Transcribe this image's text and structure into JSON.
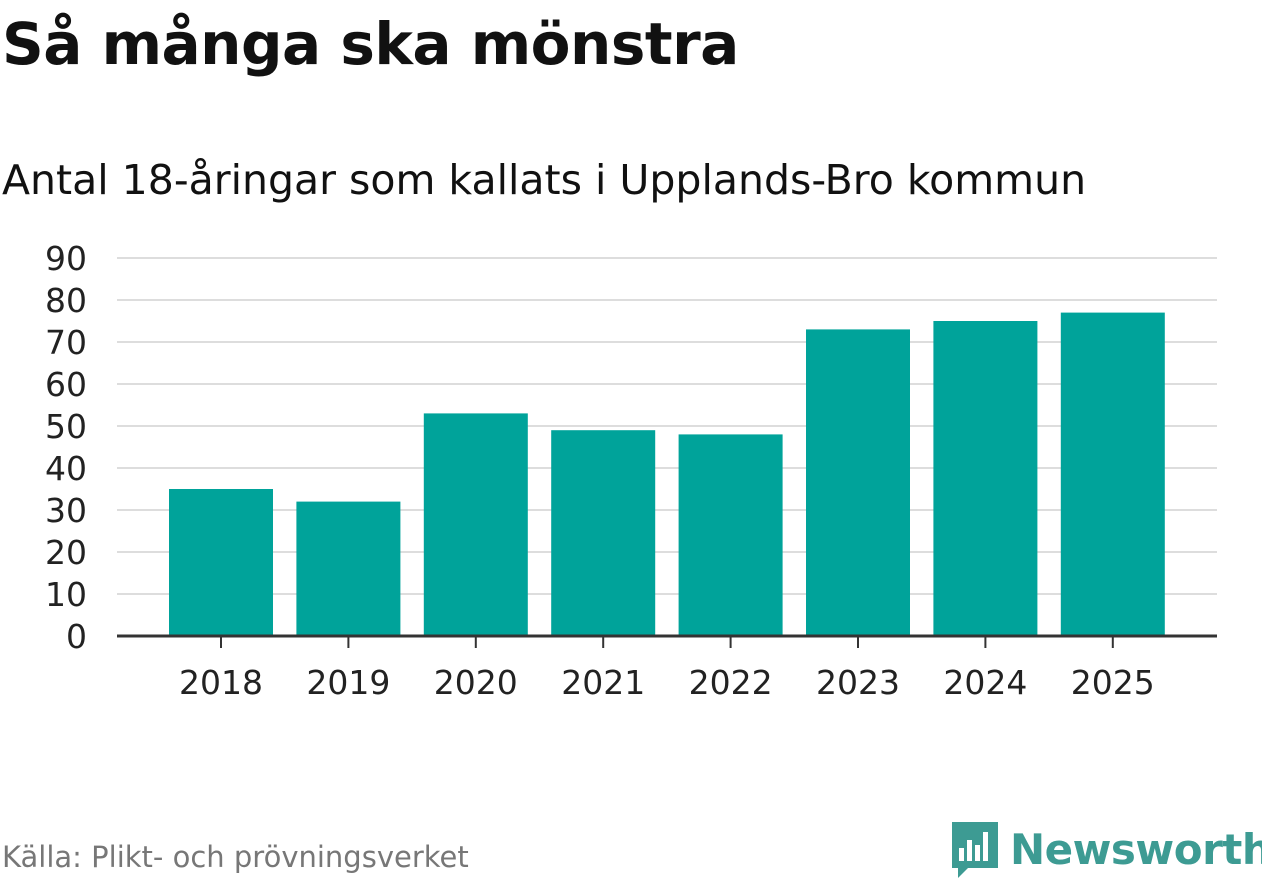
{
  "title": "Så många ska mönstra",
  "subtitle": "Antal 18-åringar som kallats i Upplands-Bro kommun",
  "source": "Källa: Plikt- och prövningsverket",
  "brand": {
    "name": "Newsworthy",
    "icon": "newsworthy-logo-icon",
    "color": "#3d9b93"
  },
  "colors": {
    "bar": "#00a39a",
    "grid": "#dddddd",
    "axis": "#333333"
  },
  "chart_data": {
    "type": "bar",
    "title": "Så många ska mönstra",
    "subtitle": "Antal 18-åringar som kallats i Upplands-Bro kommun",
    "categories": [
      "2018",
      "2019",
      "2020",
      "2021",
      "2022",
      "2023",
      "2024",
      "2025"
    ],
    "values": [
      35,
      32,
      53,
      49,
      48,
      73,
      75,
      77
    ],
    "yticks": [
      0,
      10,
      20,
      30,
      40,
      50,
      60,
      70,
      80,
      90
    ],
    "ylim": [
      0,
      90
    ],
    "xlabel": "",
    "ylabel": "",
    "grid": true,
    "legend": "none"
  }
}
